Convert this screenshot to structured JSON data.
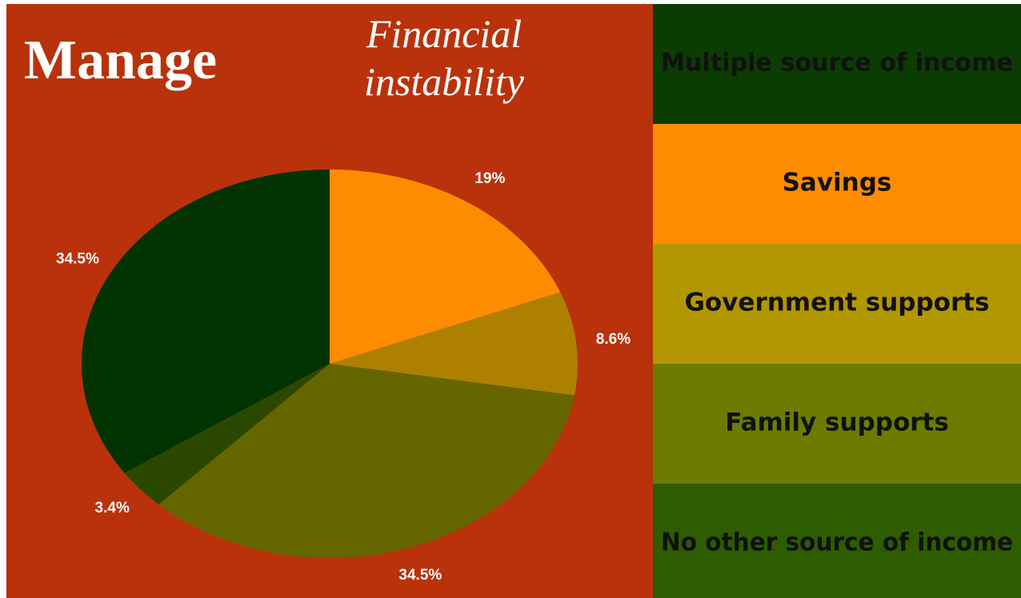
{
  "chart_data": {
    "type": "pie",
    "title": "Manage",
    "subtitle": "Financial instability",
    "categories": [
      "Savings",
      "Government supports",
      "Family supports",
      "No other source of income",
      "Multiple source of income"
    ],
    "values": [
      19,
      8.6,
      34.5,
      3.4,
      34.5
    ],
    "value_labels": [
      "19%",
      "8.6%",
      "34.5%",
      "3.4%",
      "34.5%"
    ],
    "colors": [
      "#ff8c00",
      "#ad8000",
      "#666600",
      "#2b4800",
      "#003300"
    ],
    "legend_colors": [
      "#ff8c00",
      "#b39700",
      "#6b7c00",
      "#2e5c00",
      "#0b3d02"
    ],
    "background": "#b9320b"
  }
}
